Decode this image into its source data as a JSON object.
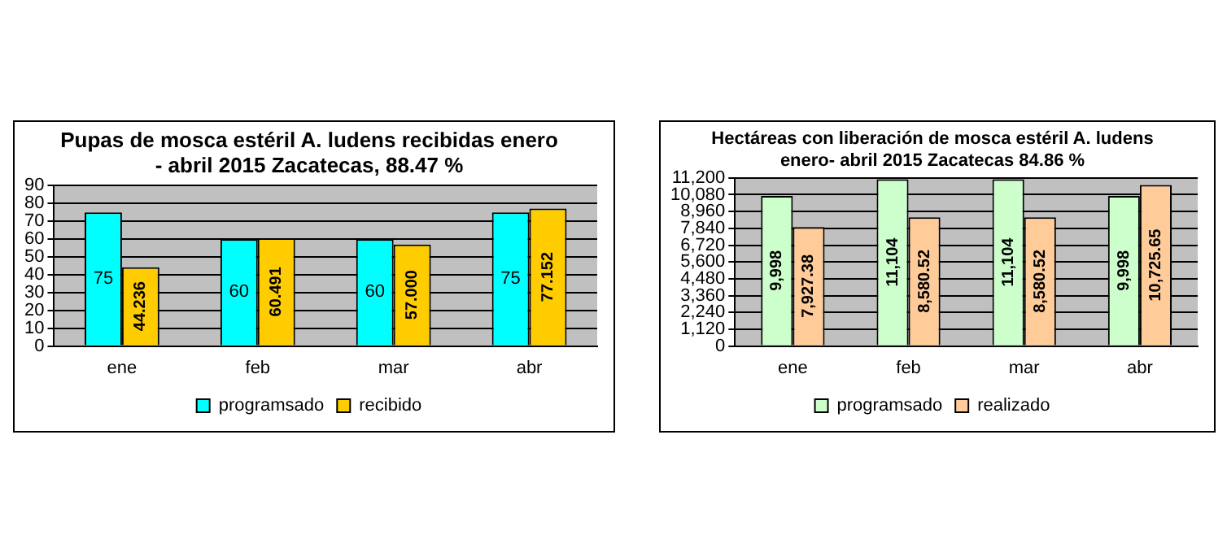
{
  "chart_data": [
    {
      "type": "bar",
      "title": "Pupas de mosca estéril A. ludens recibidas enero - abril 2015 Zacatecas, 88.47 %",
      "categories": [
        "ene",
        "feb",
        "mar",
        "abr"
      ],
      "series": [
        {
          "name": "programsado",
          "color": "#00ffff",
          "values": [
            75,
            60,
            60,
            75
          ],
          "value_labels": [
            "75",
            "60",
            "60",
            "75"
          ]
        },
        {
          "name": "recibido",
          "color": "#ffcc00",
          "values": [
            44.236,
            60.491,
            57.0,
            77.152
          ],
          "value_labels": [
            "44.236",
            "60.491",
            "57.000",
            "77.152"
          ]
        }
      ],
      "ylim": [
        0,
        90
      ],
      "yticks": [
        0,
        10,
        20,
        30,
        40,
        50,
        60,
        70,
        80,
        90
      ],
      "grid": "y",
      "legend": "bottom"
    },
    {
      "type": "bar",
      "title": "Hectáreas con liberación de mosca estéril A. ludens enero- abril 2015 Zacatecas 84.86 %",
      "categories": [
        "ene",
        "feb",
        "mar",
        "abr"
      ],
      "series": [
        {
          "name": "programsado",
          "color": "#ccffcc",
          "values": [
            9998,
            11104,
            11104,
            9998
          ],
          "value_labels": [
            "9,998",
            "11,104",
            "11,104",
            "9,998"
          ]
        },
        {
          "name": "realizado",
          "color": "#ffcc99",
          "values": [
            7927.38,
            8580.52,
            8580.52,
            10725.65
          ],
          "value_labels": [
            "7,927.38",
            "8,580.52",
            "8,580.52",
            "10,725.65"
          ]
        }
      ],
      "ylim": [
        0,
        11200
      ],
      "yticks": [
        0,
        {
          "value": 1120,
          "label": "1,120"
        },
        {
          "value": 2240,
          "label": "2,240"
        },
        {
          "value": 3360,
          "label": "3,360"
        },
        {
          "value": 4480,
          "label": "4,480"
        },
        {
          "value": 5600,
          "label": "5,600"
        },
        {
          "value": 6720,
          "label": "6,720"
        },
        {
          "value": 7840,
          "label": "7,840"
        },
        {
          "value": 8960,
          "label": "8,960"
        },
        {
          "value": 10080,
          "label": "10,080"
        },
        {
          "value": 11200,
          "label": "11,200"
        }
      ],
      "grid": "y",
      "legend": "bottom"
    }
  ]
}
